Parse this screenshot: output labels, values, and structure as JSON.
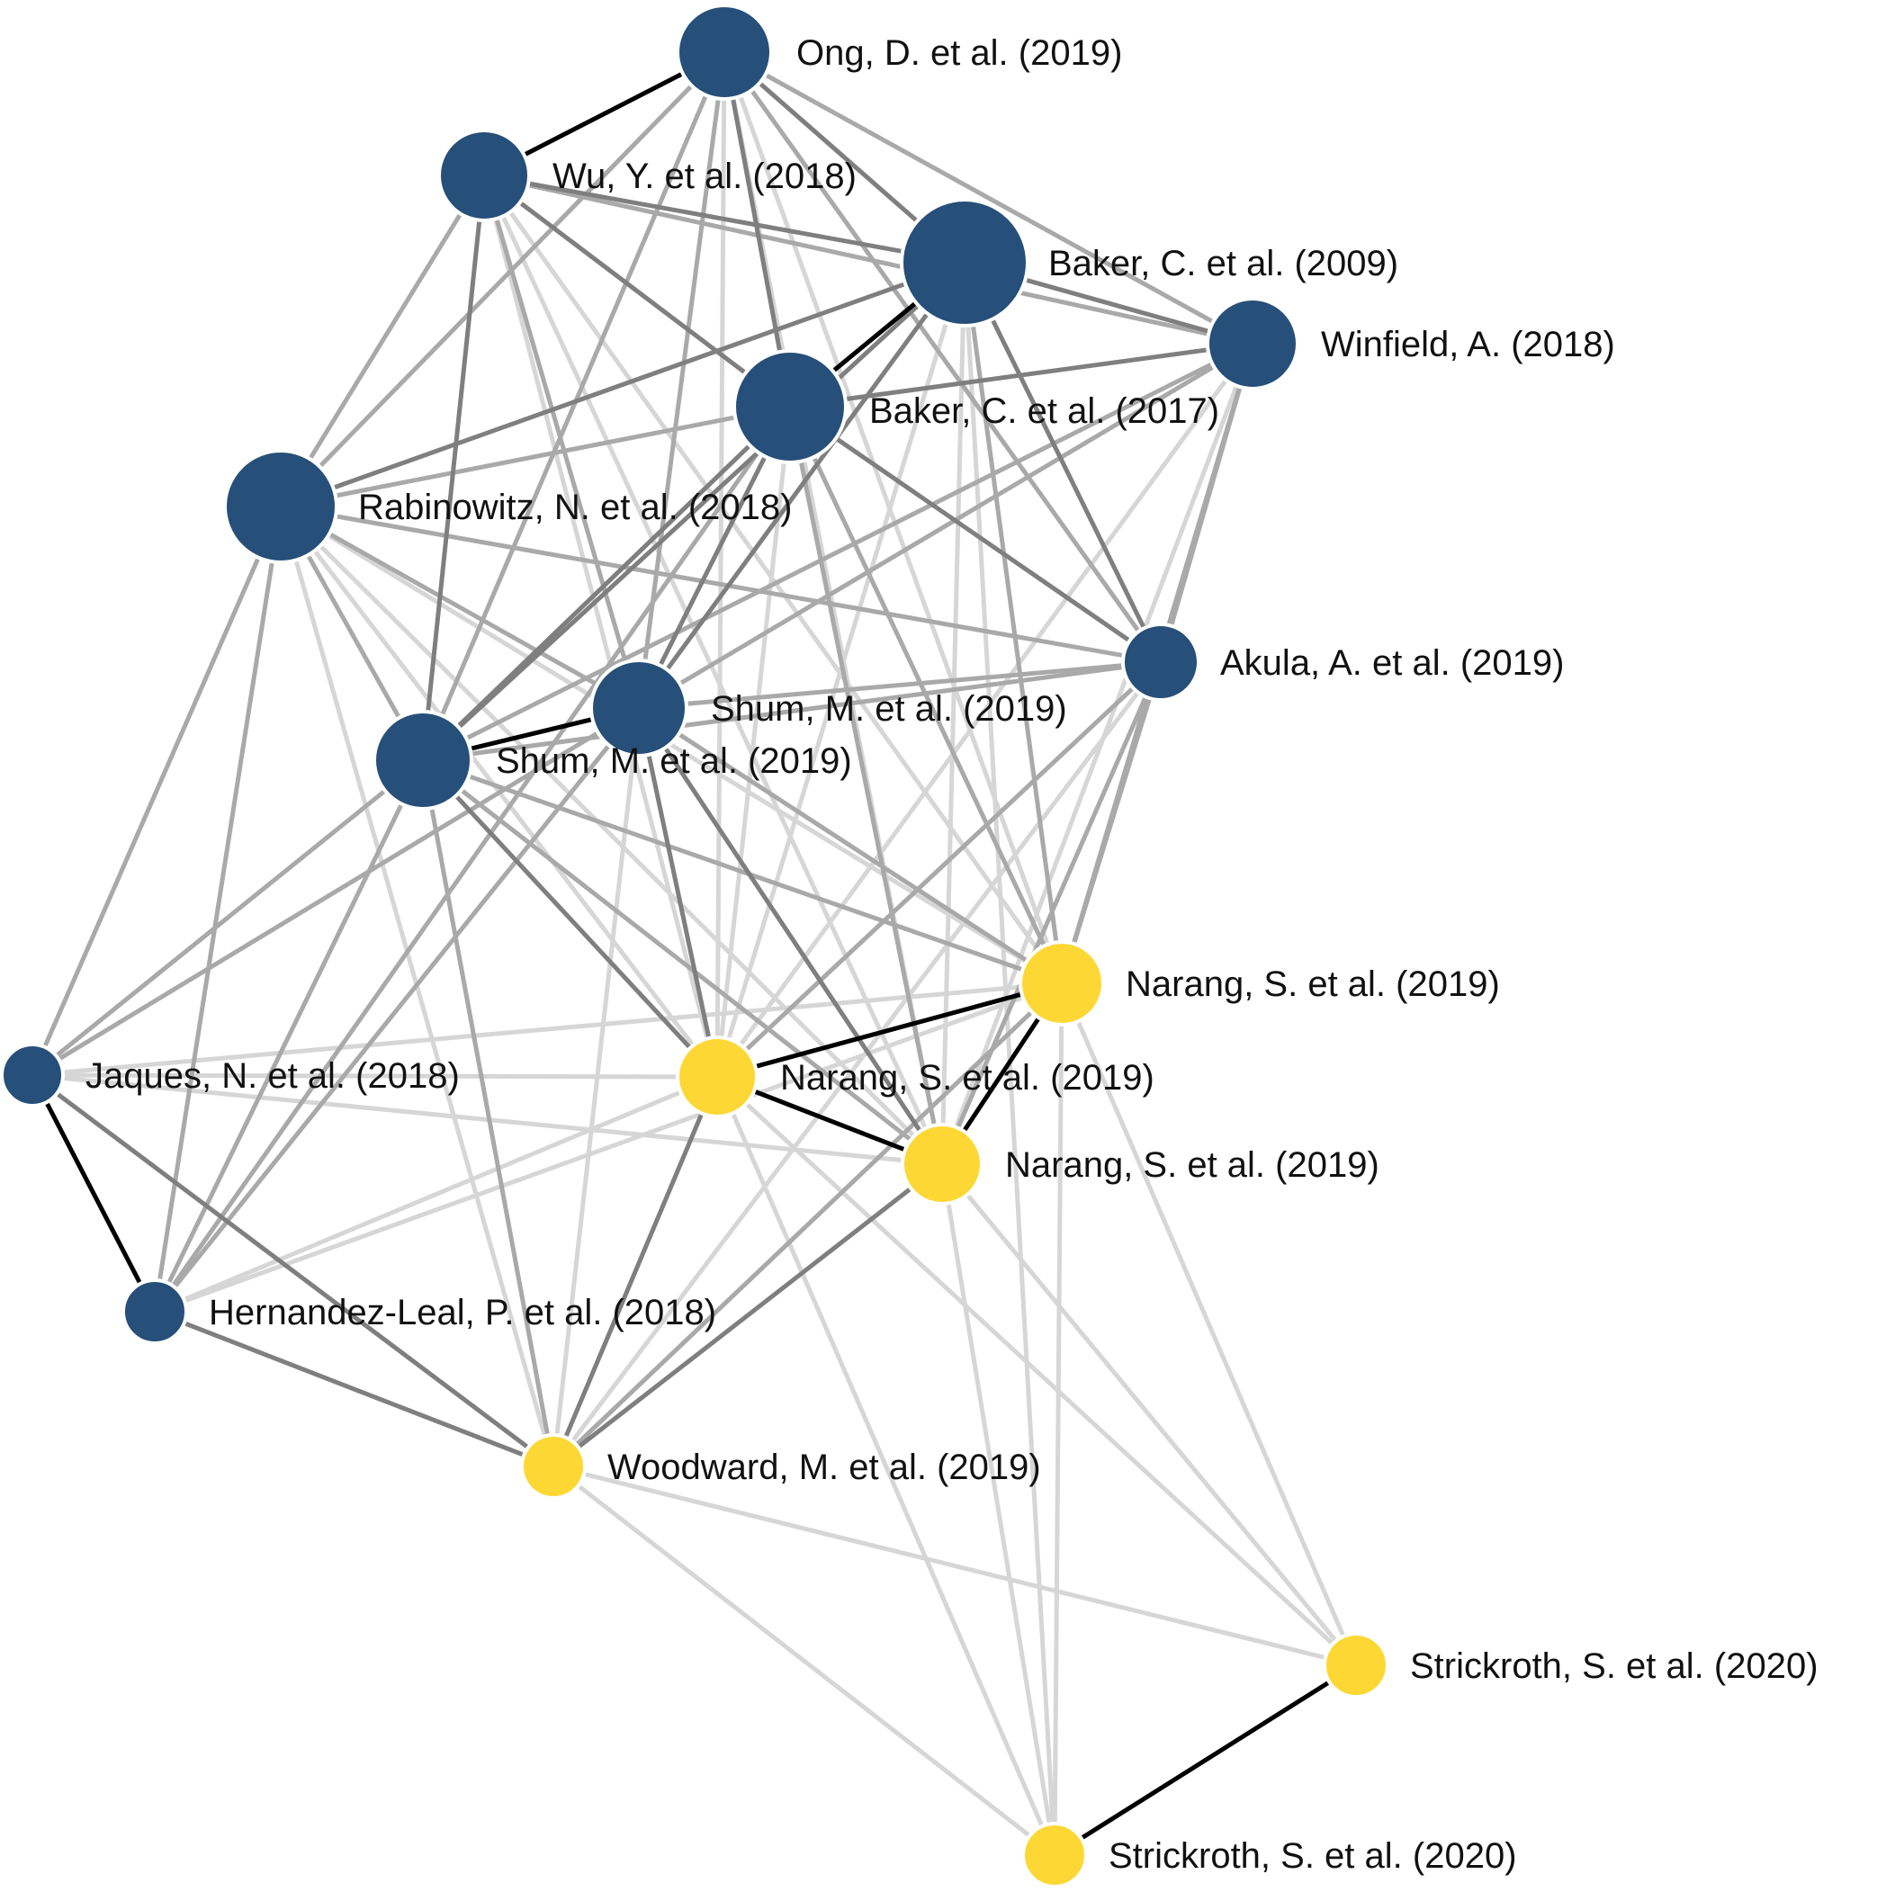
{
  "colors": {
    "cluster_blue": "#264f79",
    "cluster_yellow": "#fdd835",
    "edge_strong": "#000000",
    "edge_dark": "#7f7f7f",
    "edge_mid": "#a9a9a9",
    "edge_light": "#d6d6d6"
  },
  "nodes": [
    {
      "id": "ong2019",
      "label": "Ong, D. et al. (2019)",
      "group": "blue",
      "degree": 10
    },
    {
      "id": "wu2018",
      "label": "Wu, Y. et al. (2018)",
      "group": "blue",
      "degree": 9
    },
    {
      "id": "baker2009",
      "label": "Baker, C. et al. (2009)",
      "group": "blue",
      "degree": 14
    },
    {
      "id": "winfield2018",
      "label": "Winfield, A. (2018)",
      "group": "blue",
      "degree": 9
    },
    {
      "id": "baker2017",
      "label": "Baker, C. et al. (2017)",
      "group": "blue",
      "degree": 12
    },
    {
      "id": "rabinowitz2018",
      "label": "Rabinowitz, N. et al. (2018)",
      "group": "blue",
      "degree": 12
    },
    {
      "id": "akula2019",
      "label": "Akula, A. et al. (2019)",
      "group": "blue",
      "degree": 7
    },
    {
      "id": "shum2019a",
      "label": "Shum, M. et al. (2019)",
      "group": "blue",
      "degree": 10
    },
    {
      "id": "shum2019b",
      "label": "Shum, M. et al. (2019)",
      "group": "blue",
      "degree": 10
    },
    {
      "id": "narang2019a",
      "label": "Narang, S. et al. (2019)",
      "group": "yellow",
      "degree": 7
    },
    {
      "id": "jaques2018",
      "label": "Jaques, N. et al. (2018)",
      "group": "blue",
      "degree": 5
    },
    {
      "id": "narang2019b",
      "label": "Narang, S. et al. (2019)",
      "group": "yellow",
      "degree": 7
    },
    {
      "id": "narang2019c",
      "label": "Narang, S. et al. (2019)",
      "group": "yellow",
      "degree": 7
    },
    {
      "id": "hernandez2018",
      "label": "Hernandez-Leal, P. et al. (2018)",
      "group": "blue",
      "degree": 5
    },
    {
      "id": "woodward2019",
      "label": "Woodward, M. et al. (2019)",
      "group": "yellow",
      "degree": 5
    },
    {
      "id": "strickroth2020a",
      "label": "Strickroth, S. et al. (2020)",
      "group": "yellow",
      "degree": 5
    },
    {
      "id": "strickroth2020b",
      "label": "Strickroth, S. et al. (2020)",
      "group": "yellow",
      "degree": 5
    }
  ],
  "edges": [
    {
      "source": "ong2019",
      "target": "wu2018",
      "strength": "strong"
    },
    {
      "source": "shum2019a",
      "target": "shum2019b",
      "strength": "strong"
    },
    {
      "source": "baker2009",
      "target": "baker2017",
      "strength": "strong"
    },
    {
      "source": "jaques2018",
      "target": "hernandez2018",
      "strength": "strong"
    },
    {
      "source": "strickroth2020a",
      "target": "strickroth2020b",
      "strength": "strong"
    },
    {
      "source": "narang2019a",
      "target": "narang2019b",
      "strength": "strong"
    },
    {
      "source": "narang2019b",
      "target": "narang2019c",
      "strength": "strong"
    },
    {
      "source": "narang2019a",
      "target": "narang2019c",
      "strength": "strong"
    },
    {
      "source": "ong2019",
      "target": "baker2009",
      "strength": "dark"
    },
    {
      "source": "ong2019",
      "target": "baker2017",
      "strength": "dark"
    },
    {
      "source": "ong2019",
      "target": "winfield2018",
      "strength": "mid"
    },
    {
      "source": "ong2019",
      "target": "rabinowitz2018",
      "strength": "mid"
    },
    {
      "source": "ong2019",
      "target": "shum2019a",
      "strength": "mid"
    },
    {
      "source": "ong2019",
      "target": "shum2019b",
      "strength": "mid"
    },
    {
      "source": "ong2019",
      "target": "akula2019",
      "strength": "mid"
    },
    {
      "source": "ong2019",
      "target": "narang2019a",
      "strength": "light"
    },
    {
      "source": "ong2019",
      "target": "narang2019b",
      "strength": "light"
    },
    {
      "source": "ong2019",
      "target": "narang2019c",
      "strength": "light"
    },
    {
      "source": "wu2018",
      "target": "baker2009",
      "strength": "dark"
    },
    {
      "source": "wu2018",
      "target": "baker2017",
      "strength": "dark"
    },
    {
      "source": "wu2018",
      "target": "winfield2018",
      "strength": "mid"
    },
    {
      "source": "wu2018",
      "target": "rabinowitz2018",
      "strength": "mid"
    },
    {
      "source": "wu2018",
      "target": "shum2019a",
      "strength": "mid"
    },
    {
      "source": "wu2018",
      "target": "shum2019b",
      "strength": "dark"
    },
    {
      "source": "wu2018",
      "target": "narang2019a",
      "strength": "light"
    },
    {
      "source": "wu2018",
      "target": "narang2019b",
      "strength": "light"
    },
    {
      "source": "wu2018",
      "target": "narang2019c",
      "strength": "light"
    },
    {
      "source": "baker2009",
      "target": "winfield2018",
      "strength": "dark"
    },
    {
      "source": "baker2009",
      "target": "rabinowitz2018",
      "strength": "dark"
    },
    {
      "source": "baker2009",
      "target": "shum2019a",
      "strength": "dark"
    },
    {
      "source": "baker2009",
      "target": "shum2019b",
      "strength": "dark"
    },
    {
      "source": "baker2009",
      "target": "akula2019",
      "strength": "dark"
    },
    {
      "source": "baker2009",
      "target": "narang2019a",
      "strength": "mid"
    },
    {
      "source": "baker2009",
      "target": "narang2019b",
      "strength": "light"
    },
    {
      "source": "baker2009",
      "target": "narang2019c",
      "strength": "light"
    },
    {
      "source": "baker2009",
      "target": "strickroth2020b",
      "strength": "light"
    },
    {
      "source": "winfield2018",
      "target": "baker2017",
      "strength": "dark"
    },
    {
      "source": "winfield2018",
      "target": "shum2019a",
      "strength": "mid"
    },
    {
      "source": "winfield2018",
      "target": "shum2019b",
      "strength": "mid"
    },
    {
      "source": "winfield2018",
      "target": "akula2019",
      "strength": "mid"
    },
    {
      "source": "winfield2018",
      "target": "narang2019a",
      "strength": "mid"
    },
    {
      "source": "winfield2018",
      "target": "narang2019b",
      "strength": "light"
    },
    {
      "source": "winfield2018",
      "target": "narang2019c",
      "strength": "light"
    },
    {
      "source": "baker2017",
      "target": "rabinowitz2018",
      "strength": "mid"
    },
    {
      "source": "baker2017",
      "target": "shum2019a",
      "strength": "dark"
    },
    {
      "source": "baker2017",
      "target": "shum2019b",
      "strength": "dark"
    },
    {
      "source": "baker2017",
      "target": "akula2019",
      "strength": "dark"
    },
    {
      "source": "baker2017",
      "target": "narang2019a",
      "strength": "mid"
    },
    {
      "source": "baker2017",
      "target": "narang2019b",
      "strength": "light"
    },
    {
      "source": "baker2017",
      "target": "narang2019c",
      "strength": "mid"
    },
    {
      "source": "baker2017",
      "target": "hernandez2018",
      "strength": "mid"
    },
    {
      "source": "rabinowitz2018",
      "target": "shum2019a",
      "strength": "mid"
    },
    {
      "source": "rabinowitz2018",
      "target": "shum2019b",
      "strength": "mid"
    },
    {
      "source": "rabinowitz2018",
      "target": "akula2019",
      "strength": "mid"
    },
    {
      "source": "rabinowitz2018",
      "target": "jaques2018",
      "strength": "mid"
    },
    {
      "source": "rabinowitz2018",
      "target": "hernandez2018",
      "strength": "mid"
    },
    {
      "source": "rabinowitz2018",
      "target": "narang2019a",
      "strength": "light"
    },
    {
      "source": "rabinowitz2018",
      "target": "narang2019b",
      "strength": "light"
    },
    {
      "source": "rabinowitz2018",
      "target": "narang2019c",
      "strength": "light"
    },
    {
      "source": "rabinowitz2018",
      "target": "woodward2019",
      "strength": "light"
    },
    {
      "source": "akula2019",
      "target": "shum2019a",
      "strength": "mid"
    },
    {
      "source": "akula2019",
      "target": "shum2019b",
      "strength": "mid"
    },
    {
      "source": "akula2019",
      "target": "narang2019a",
      "strength": "mid"
    },
    {
      "source": "akula2019",
      "target": "narang2019b",
      "strength": "mid"
    },
    {
      "source": "akula2019",
      "target": "narang2019c",
      "strength": "mid"
    },
    {
      "source": "akula2019",
      "target": "woodward2019",
      "strength": "light"
    },
    {
      "source": "shum2019a",
      "target": "narang2019a",
      "strength": "mid"
    },
    {
      "source": "shum2019a",
      "target": "narang2019b",
      "strength": "dark"
    },
    {
      "source": "shum2019a",
      "target": "narang2019c",
      "strength": "dark"
    },
    {
      "source": "shum2019a",
      "target": "hernandez2018",
      "strength": "mid"
    },
    {
      "source": "shum2019a",
      "target": "jaques2018",
      "strength": "mid"
    },
    {
      "source": "shum2019a",
      "target": "woodward2019",
      "strength": "light"
    },
    {
      "source": "shum2019b",
      "target": "narang2019a",
      "strength": "mid"
    },
    {
      "source": "shum2019b",
      "target": "narang2019b",
      "strength": "dark"
    },
    {
      "source": "shum2019b",
      "target": "narang2019c",
      "strength": "mid"
    },
    {
      "source": "shum2019b",
      "target": "jaques2018",
      "strength": "mid"
    },
    {
      "source": "shum2019b",
      "target": "hernandez2018",
      "strength": "mid"
    },
    {
      "source": "shum2019b",
      "target": "woodward2019",
      "strength": "mid"
    },
    {
      "source": "jaques2018",
      "target": "narang2019a",
      "strength": "light"
    },
    {
      "source": "jaques2018",
      "target": "narang2019b",
      "strength": "light"
    },
    {
      "source": "jaques2018",
      "target": "narang2019c",
      "strength": "light"
    },
    {
      "source": "jaques2018",
      "target": "woodward2019",
      "strength": "dark"
    },
    {
      "source": "hernandez2018",
      "target": "narang2019a",
      "strength": "light"
    },
    {
      "source": "hernandez2018",
      "target": "narang2019b",
      "strength": "light"
    },
    {
      "source": "hernandez2018",
      "target": "woodward2019",
      "strength": "dark"
    },
    {
      "source": "woodward2019",
      "target": "narang2019a",
      "strength": "mid"
    },
    {
      "source": "woodward2019",
      "target": "narang2019b",
      "strength": "dark"
    },
    {
      "source": "woodward2019",
      "target": "narang2019c",
      "strength": "dark"
    },
    {
      "source": "woodward2019",
      "target": "strickroth2020a",
      "strength": "light"
    },
    {
      "source": "woodward2019",
      "target": "strickroth2020b",
      "strength": "light"
    },
    {
      "source": "narang2019a",
      "target": "strickroth2020a",
      "strength": "light"
    },
    {
      "source": "narang2019a",
      "target": "strickroth2020b",
      "strength": "light"
    },
    {
      "source": "narang2019b",
      "target": "strickroth2020a",
      "strength": "light"
    },
    {
      "source": "narang2019b",
      "target": "strickroth2020b",
      "strength": "light"
    },
    {
      "source": "narang2019c",
      "target": "strickroth2020a",
      "strength": "light"
    },
    {
      "source": "narang2019c",
      "target": "strickroth2020b",
      "strength": "light"
    }
  ]
}
